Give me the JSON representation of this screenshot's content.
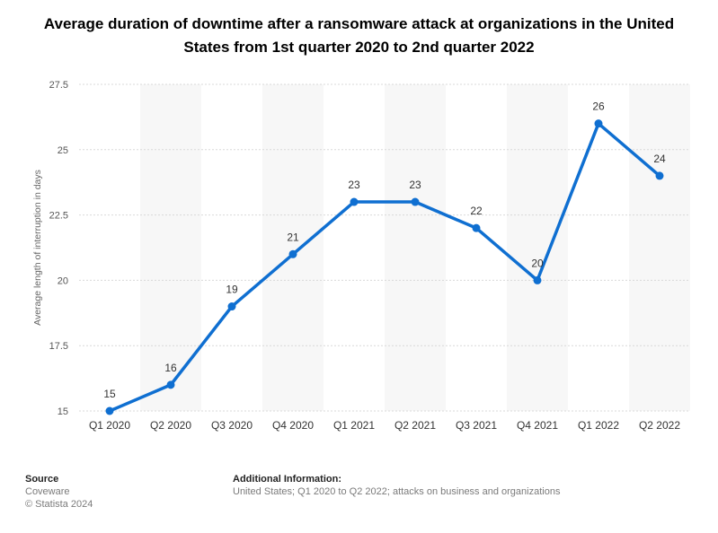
{
  "title": "Average duration of downtime after a ransomware attack at organizations in the United States from 1st quarter 2020 to 2nd quarter 2022",
  "chart_data": {
    "type": "line",
    "title": "Average duration of downtime after a ransomware attack at organizations in the United States from 1st quarter 2020 to 2nd quarter 2022",
    "xlabel": "",
    "ylabel": "Average length of interruption in days",
    "categories": [
      "Q1 2020",
      "Q2 2020",
      "Q3 2020",
      "Q4 2020",
      "Q1 2021",
      "Q2 2021",
      "Q3 2021",
      "Q4 2021",
      "Q1 2022",
      "Q2 2022"
    ],
    "values": [
      15,
      16,
      19,
      21,
      23,
      23,
      22,
      20,
      26,
      24
    ],
    "ylim": [
      15,
      27.5
    ],
    "yticks": [
      15,
      17.5,
      20,
      22.5,
      25,
      27.5
    ],
    "ytick_labels": [
      "15",
      "17.5",
      "20",
      "22.5",
      "25",
      "27.5"
    ],
    "grid": true,
    "line_color": "#0f6fd1"
  },
  "footer": {
    "source_label": "Source",
    "source_name": "Coveware",
    "copyright": "© Statista 2024",
    "info_label": "Additional Information:",
    "info_text": "United States; Q1 2020 to Q2 2022; attacks on business and organizations"
  }
}
